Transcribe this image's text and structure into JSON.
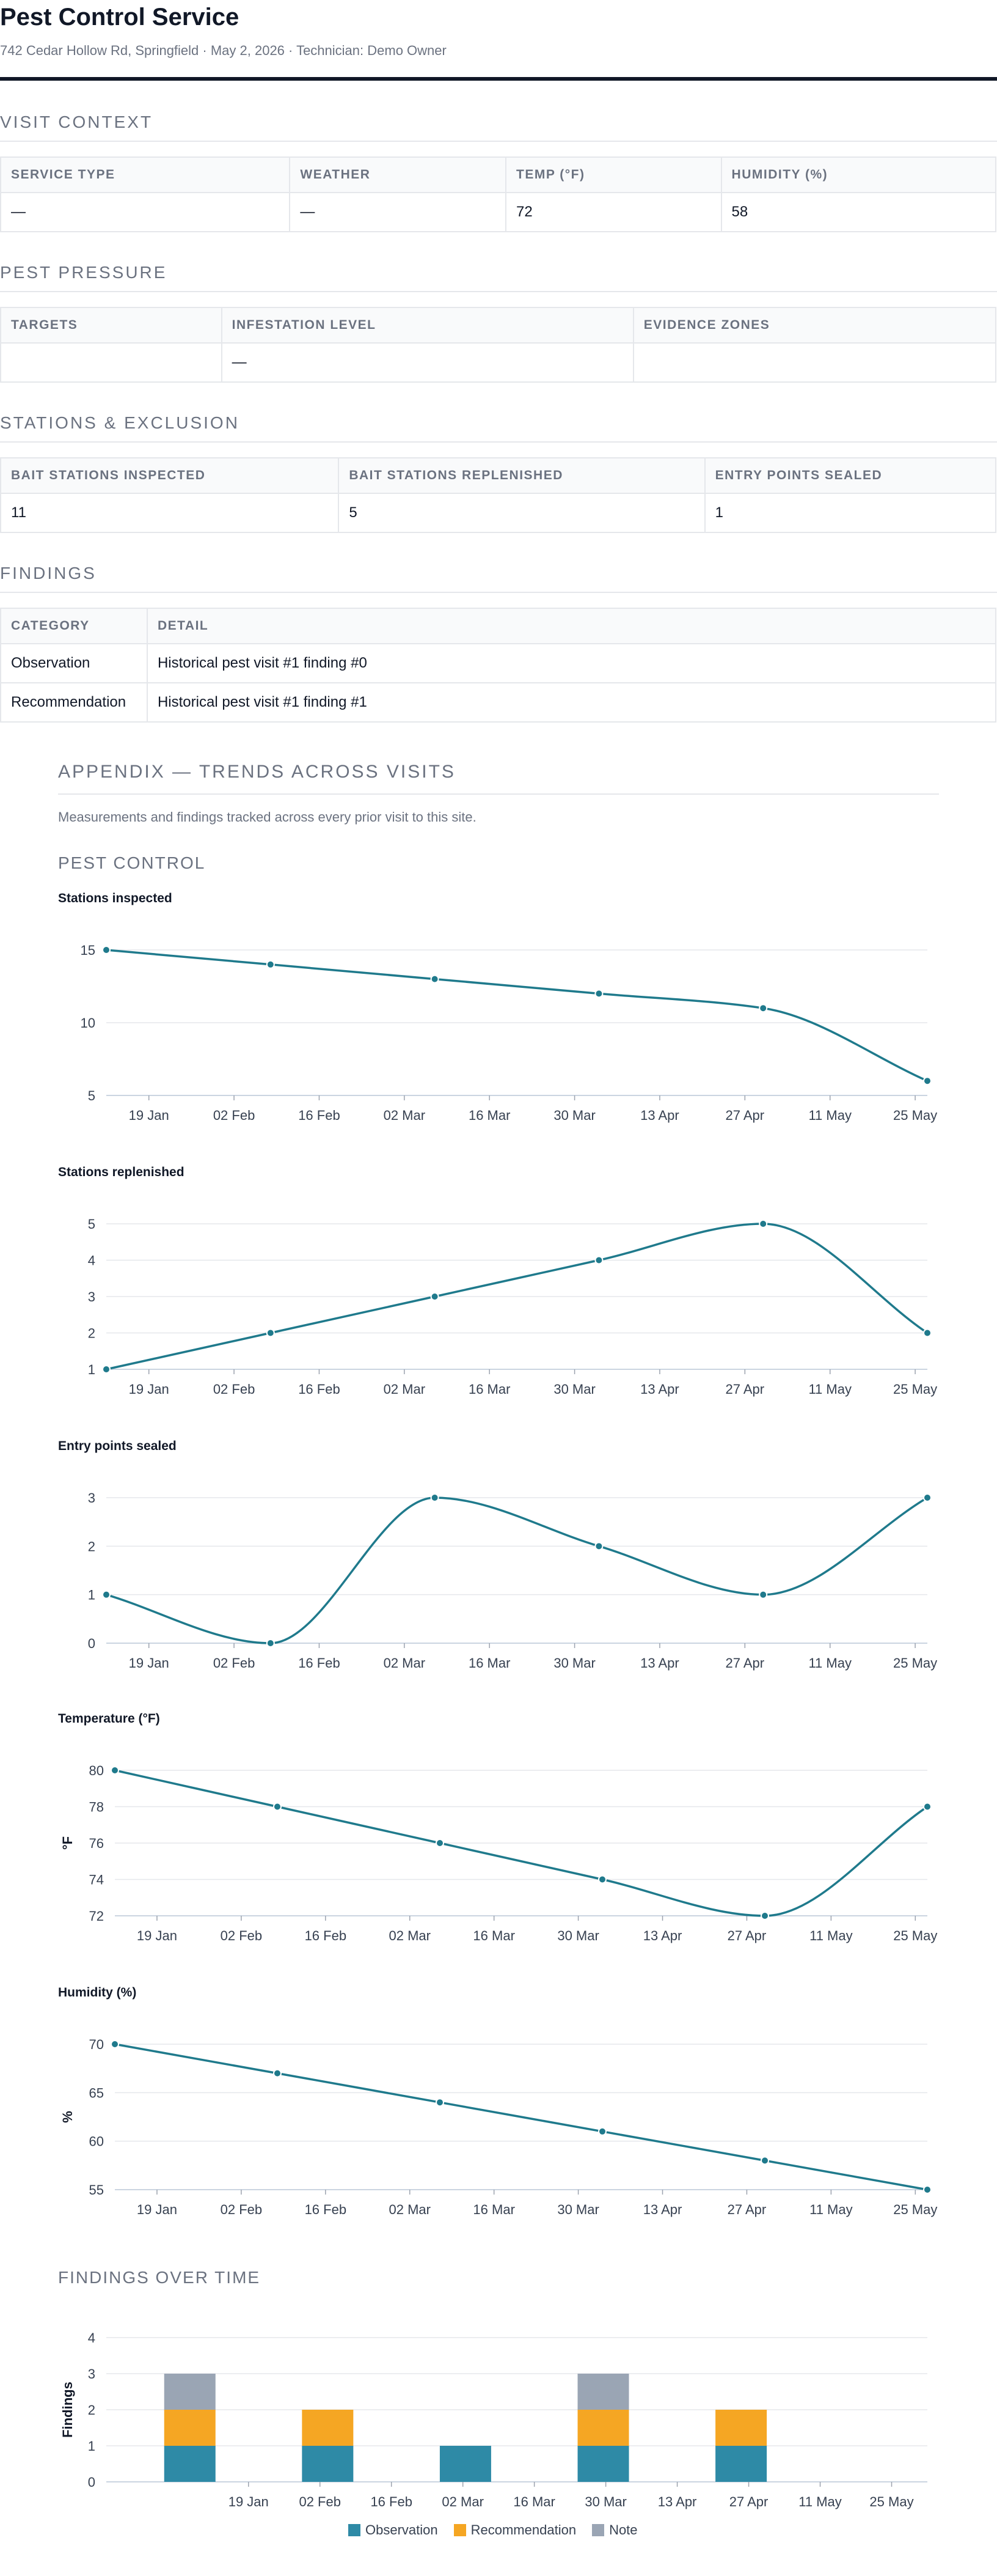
{
  "header": {
    "title": "Pest Control Service",
    "subtitle": "742 Cedar Hollow Rd, Springfield · May 2, 2026 · Technician: Demo Owner"
  },
  "visit_context": {
    "title": "VISIT CONTEXT",
    "headers": [
      "SERVICE TYPE",
      "WEATHER",
      "TEMP (°F)",
      "HUMIDITY (%)"
    ],
    "values": [
      "—",
      "—",
      "72",
      "58"
    ]
  },
  "pest_pressure": {
    "title": "PEST PRESSURE",
    "headers": [
      "TARGETS",
      "INFESTATION LEVEL",
      "EVIDENCE ZONES"
    ],
    "values": [
      "",
      "—",
      ""
    ]
  },
  "stations": {
    "title": "STATIONS & EXCLUSION",
    "headers": [
      "BAIT STATIONS INSPECTED",
      "BAIT STATIONS REPLENISHED",
      "ENTRY POINTS SEALED"
    ],
    "values": [
      "11",
      "5",
      "1"
    ]
  },
  "findings": {
    "title": "FINDINGS",
    "headers": [
      "CATEGORY",
      "DETAIL"
    ],
    "rows": [
      {
        "category": "Observation",
        "detail": "Historical pest visit #1 finding #0"
      },
      {
        "category": "Recommendation",
        "detail": "Historical pest visit #1 finding #1"
      }
    ]
  },
  "appendix": {
    "title": "APPENDIX — TRENDS ACROSS VISITS",
    "subtitle": "Measurements and findings tracked across every prior visit to this site.",
    "group_title": "PEST CONTROL",
    "findings_title": "FINDINGS OVER TIME"
  },
  "colors": {
    "line": "#1f7a8c",
    "observation": "#2e8aa6",
    "recommendation": "#f5a623",
    "note": "#9aa5b4"
  },
  "chart_data": [
    {
      "type": "line",
      "title": "Stations inspected",
      "ylabel": "",
      "x": [
        "2026-01-12",
        "2026-02-08",
        "2026-03-07",
        "2026-04-03",
        "2026-04-30",
        "2026-05-27"
      ],
      "xticks": [
        "19 Jan",
        "02 Feb",
        "16 Feb",
        "02 Mar",
        "16 Mar",
        "30 Mar",
        "13 Apr",
        "27 Apr",
        "11 May",
        "25 May"
      ],
      "yticks": [
        5,
        10,
        15
      ],
      "ylim": [
        5,
        15
      ],
      "series": [
        {
          "values": [
            15,
            14,
            13,
            12,
            11,
            6
          ]
        }
      ]
    },
    {
      "type": "line",
      "title": "Stations replenished",
      "ylabel": "",
      "x": [
        "2026-01-12",
        "2026-02-08",
        "2026-03-07",
        "2026-04-03",
        "2026-04-30",
        "2026-05-27"
      ],
      "xticks": [
        "19 Jan",
        "02 Feb",
        "16 Feb",
        "02 Mar",
        "16 Mar",
        "30 Mar",
        "13 Apr",
        "27 Apr",
        "11 May",
        "25 May"
      ],
      "yticks": [
        1,
        2,
        3,
        4,
        5
      ],
      "ylim": [
        1,
        5
      ],
      "series": [
        {
          "values": [
            1,
            2,
            3,
            4,
            5,
            2
          ]
        }
      ]
    },
    {
      "type": "line",
      "title": "Entry points sealed",
      "ylabel": "",
      "x": [
        "2026-01-12",
        "2026-02-08",
        "2026-03-07",
        "2026-04-03",
        "2026-04-30",
        "2026-05-27"
      ],
      "xticks": [
        "19 Jan",
        "02 Feb",
        "16 Feb",
        "02 Mar",
        "16 Mar",
        "30 Mar",
        "13 Apr",
        "27 Apr",
        "11 May",
        "25 May"
      ],
      "yticks": [
        0,
        1,
        2,
        3
      ],
      "ylim": [
        0,
        3
      ],
      "series": [
        {
          "values": [
            1,
            0,
            3,
            2,
            1,
            3
          ]
        }
      ]
    },
    {
      "type": "line",
      "title": "Temperature (°F)",
      "ylabel": "°F",
      "x": [
        "2026-01-12",
        "2026-02-08",
        "2026-03-07",
        "2026-04-03",
        "2026-04-30",
        "2026-05-27"
      ],
      "xticks": [
        "19 Jan",
        "02 Feb",
        "16 Feb",
        "02 Mar",
        "16 Mar",
        "30 Mar",
        "13 Apr",
        "27 Apr",
        "11 May",
        "25 May"
      ],
      "yticks": [
        72,
        74,
        76,
        78,
        80
      ],
      "ylim": [
        72,
        80
      ],
      "series": [
        {
          "values": [
            80,
            78,
            76,
            74,
            72,
            78
          ]
        }
      ]
    },
    {
      "type": "line",
      "title": "Humidity (%)",
      "ylabel": "%",
      "x": [
        "2026-01-12",
        "2026-02-08",
        "2026-03-07",
        "2026-04-03",
        "2026-04-30",
        "2026-05-27"
      ],
      "xticks": [
        "19 Jan",
        "02 Feb",
        "16 Feb",
        "02 Mar",
        "16 Mar",
        "30 Mar",
        "13 Apr",
        "27 Apr",
        "11 May",
        "25 May"
      ],
      "yticks": [
        55,
        60,
        65,
        70
      ],
      "ylim": [
        55,
        70
      ],
      "series": [
        {
          "values": [
            70,
            67,
            64,
            61,
            58,
            55
          ]
        }
      ]
    },
    {
      "type": "bar",
      "stacked": true,
      "title": "",
      "ylabel": "Findings",
      "x": [
        "2026-01-12",
        "2026-02-08",
        "2026-03-07",
        "2026-04-03",
        "2026-04-30"
      ],
      "xticks": [
        "19 Jan",
        "02 Feb",
        "16 Feb",
        "02 Mar",
        "16 Mar",
        "30 Mar",
        "13 Apr",
        "27 Apr",
        "11 May",
        "25 May"
      ],
      "yticks": [
        0,
        1,
        2,
        3,
        4
      ],
      "ylim": [
        0,
        4
      ],
      "legend": "bottom",
      "series": [
        {
          "name": "Observation",
          "values": [
            1,
            1,
            1,
            1,
            1
          ]
        },
        {
          "name": "Recommendation",
          "values": [
            1,
            1,
            0,
            1,
            1
          ]
        },
        {
          "name": "Note",
          "values": [
            1,
            0,
            0,
            1,
            0
          ]
        }
      ]
    }
  ]
}
